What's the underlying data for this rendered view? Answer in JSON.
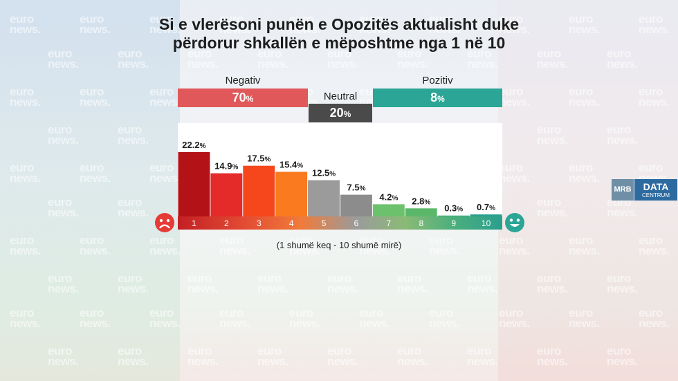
{
  "title_line1": "Si e vlerësoni punën e Opozitës aktualisht duke",
  "title_line2": "përdorur shkallën e mëposhtme nga 1 në 10",
  "groups": [
    {
      "label": "Negativ",
      "value": "70",
      "color": "#e0585a"
    },
    {
      "label": "Neutral",
      "value": "20",
      "color": "#4a4a4a"
    },
    {
      "label": "Pozitiv",
      "value": "8",
      "color": "#2ba596"
    }
  ],
  "subtitle": "(1 shumë keq - 10 shumë mirë)",
  "watermark": {
    "line1": "euro",
    "line2": "news."
  },
  "logo": {
    "left": "MRB",
    "right_top": "DATA",
    "right_bottom": "CENTRUM"
  },
  "chart_data": {
    "type": "bar",
    "title": "Si e vlerësoni punën e Opozitës aktualisht duke përdorur shkallën e mëposhtme nga 1 në 10",
    "xlabel": "(1 shumë keq - 10 shumë mirë)",
    "ylabel": "",
    "categories": [
      "1",
      "2",
      "3",
      "4",
      "5",
      "6",
      "7",
      "8",
      "9",
      "10"
    ],
    "values": [
      22.2,
      14.9,
      17.5,
      15.4,
      12.5,
      7.5,
      4.2,
      2.8,
      0.3,
      0.7
    ],
    "value_labels": [
      "22.2",
      "14.9",
      "17.5",
      "15.4",
      "12.5",
      "7.5",
      "4.2",
      "2.8",
      "0.3",
      "0.7"
    ],
    "colors": [
      "#b31217",
      "#e52a2a",
      "#f5461c",
      "#f97a1f",
      "#9b9b9b",
      "#8c8c8c",
      "#6cc26c",
      "#5bb86a",
      "#3aaf7c",
      "#2a9f8e"
    ],
    "unit": "%",
    "ylim": [
      0,
      22.2
    ]
  }
}
